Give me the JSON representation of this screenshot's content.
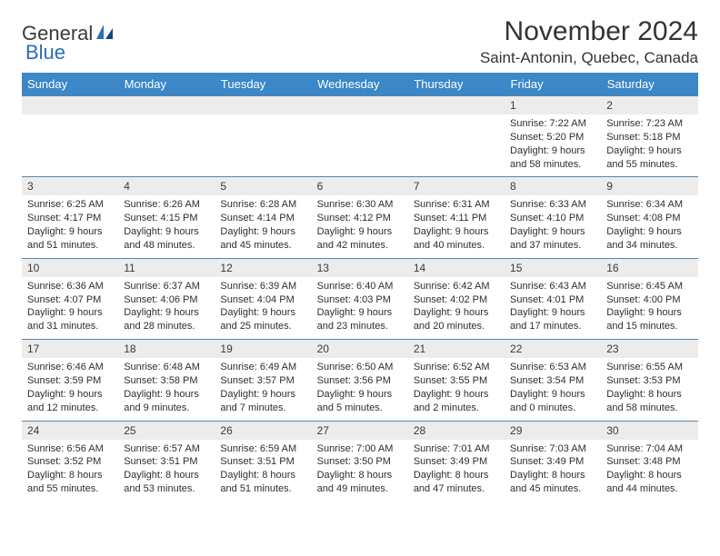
{
  "brand": {
    "part1": "General",
    "part2": "Blue"
  },
  "title": "November 2024",
  "location": "Saint-Antonin, Quebec, Canada",
  "days_of_week": [
    "Sunday",
    "Monday",
    "Tuesday",
    "Wednesday",
    "Thursday",
    "Friday",
    "Saturday"
  ],
  "colors": {
    "header_bg": "#3b87c8",
    "header_text": "#ffffff",
    "daynum_bg": "#ececec",
    "row_border": "#5a84a8",
    "body_text": "#2e2e2e",
    "title_text": "#333333",
    "logo_gray": "#3a3a3a",
    "logo_blue": "#2a6db8"
  },
  "typography": {
    "month_title_size": 30,
    "location_size": 17,
    "dow_size": 13,
    "daynum_size": 12,
    "cell_size": 11
  },
  "weeks": [
    {
      "nums": [
        "",
        "",
        "",
        "",
        "",
        "1",
        "2"
      ],
      "cells": [
        null,
        null,
        null,
        null,
        null,
        {
          "sunrise": "Sunrise: 7:22 AM",
          "sunset": "Sunset: 5:20 PM",
          "dl1": "Daylight: 9 hours",
          "dl2": "and 58 minutes."
        },
        {
          "sunrise": "Sunrise: 7:23 AM",
          "sunset": "Sunset: 5:18 PM",
          "dl1": "Daylight: 9 hours",
          "dl2": "and 55 minutes."
        }
      ]
    },
    {
      "nums": [
        "3",
        "4",
        "5",
        "6",
        "7",
        "8",
        "9"
      ],
      "cells": [
        {
          "sunrise": "Sunrise: 6:25 AM",
          "sunset": "Sunset: 4:17 PM",
          "dl1": "Daylight: 9 hours",
          "dl2": "and 51 minutes."
        },
        {
          "sunrise": "Sunrise: 6:26 AM",
          "sunset": "Sunset: 4:15 PM",
          "dl1": "Daylight: 9 hours",
          "dl2": "and 48 minutes."
        },
        {
          "sunrise": "Sunrise: 6:28 AM",
          "sunset": "Sunset: 4:14 PM",
          "dl1": "Daylight: 9 hours",
          "dl2": "and 45 minutes."
        },
        {
          "sunrise": "Sunrise: 6:30 AM",
          "sunset": "Sunset: 4:12 PM",
          "dl1": "Daylight: 9 hours",
          "dl2": "and 42 minutes."
        },
        {
          "sunrise": "Sunrise: 6:31 AM",
          "sunset": "Sunset: 4:11 PM",
          "dl1": "Daylight: 9 hours",
          "dl2": "and 40 minutes."
        },
        {
          "sunrise": "Sunrise: 6:33 AM",
          "sunset": "Sunset: 4:10 PM",
          "dl1": "Daylight: 9 hours",
          "dl2": "and 37 minutes."
        },
        {
          "sunrise": "Sunrise: 6:34 AM",
          "sunset": "Sunset: 4:08 PM",
          "dl1": "Daylight: 9 hours",
          "dl2": "and 34 minutes."
        }
      ]
    },
    {
      "nums": [
        "10",
        "11",
        "12",
        "13",
        "14",
        "15",
        "16"
      ],
      "cells": [
        {
          "sunrise": "Sunrise: 6:36 AM",
          "sunset": "Sunset: 4:07 PM",
          "dl1": "Daylight: 9 hours",
          "dl2": "and 31 minutes."
        },
        {
          "sunrise": "Sunrise: 6:37 AM",
          "sunset": "Sunset: 4:06 PM",
          "dl1": "Daylight: 9 hours",
          "dl2": "and 28 minutes."
        },
        {
          "sunrise": "Sunrise: 6:39 AM",
          "sunset": "Sunset: 4:04 PM",
          "dl1": "Daylight: 9 hours",
          "dl2": "and 25 minutes."
        },
        {
          "sunrise": "Sunrise: 6:40 AM",
          "sunset": "Sunset: 4:03 PM",
          "dl1": "Daylight: 9 hours",
          "dl2": "and 23 minutes."
        },
        {
          "sunrise": "Sunrise: 6:42 AM",
          "sunset": "Sunset: 4:02 PM",
          "dl1": "Daylight: 9 hours",
          "dl2": "and 20 minutes."
        },
        {
          "sunrise": "Sunrise: 6:43 AM",
          "sunset": "Sunset: 4:01 PM",
          "dl1": "Daylight: 9 hours",
          "dl2": "and 17 minutes."
        },
        {
          "sunrise": "Sunrise: 6:45 AM",
          "sunset": "Sunset: 4:00 PM",
          "dl1": "Daylight: 9 hours",
          "dl2": "and 15 minutes."
        }
      ]
    },
    {
      "nums": [
        "17",
        "18",
        "19",
        "20",
        "21",
        "22",
        "23"
      ],
      "cells": [
        {
          "sunrise": "Sunrise: 6:46 AM",
          "sunset": "Sunset: 3:59 PM",
          "dl1": "Daylight: 9 hours",
          "dl2": "and 12 minutes."
        },
        {
          "sunrise": "Sunrise: 6:48 AM",
          "sunset": "Sunset: 3:58 PM",
          "dl1": "Daylight: 9 hours",
          "dl2": "and 9 minutes."
        },
        {
          "sunrise": "Sunrise: 6:49 AM",
          "sunset": "Sunset: 3:57 PM",
          "dl1": "Daylight: 9 hours",
          "dl2": "and 7 minutes."
        },
        {
          "sunrise": "Sunrise: 6:50 AM",
          "sunset": "Sunset: 3:56 PM",
          "dl1": "Daylight: 9 hours",
          "dl2": "and 5 minutes."
        },
        {
          "sunrise": "Sunrise: 6:52 AM",
          "sunset": "Sunset: 3:55 PM",
          "dl1": "Daylight: 9 hours",
          "dl2": "and 2 minutes."
        },
        {
          "sunrise": "Sunrise: 6:53 AM",
          "sunset": "Sunset: 3:54 PM",
          "dl1": "Daylight: 9 hours",
          "dl2": "and 0 minutes."
        },
        {
          "sunrise": "Sunrise: 6:55 AM",
          "sunset": "Sunset: 3:53 PM",
          "dl1": "Daylight: 8 hours",
          "dl2": "and 58 minutes."
        }
      ]
    },
    {
      "nums": [
        "24",
        "25",
        "26",
        "27",
        "28",
        "29",
        "30"
      ],
      "cells": [
        {
          "sunrise": "Sunrise: 6:56 AM",
          "sunset": "Sunset: 3:52 PM",
          "dl1": "Daylight: 8 hours",
          "dl2": "and 55 minutes."
        },
        {
          "sunrise": "Sunrise: 6:57 AM",
          "sunset": "Sunset: 3:51 PM",
          "dl1": "Daylight: 8 hours",
          "dl2": "and 53 minutes."
        },
        {
          "sunrise": "Sunrise: 6:59 AM",
          "sunset": "Sunset: 3:51 PM",
          "dl1": "Daylight: 8 hours",
          "dl2": "and 51 minutes."
        },
        {
          "sunrise": "Sunrise: 7:00 AM",
          "sunset": "Sunset: 3:50 PM",
          "dl1": "Daylight: 8 hours",
          "dl2": "and 49 minutes."
        },
        {
          "sunrise": "Sunrise: 7:01 AM",
          "sunset": "Sunset: 3:49 PM",
          "dl1": "Daylight: 8 hours",
          "dl2": "and 47 minutes."
        },
        {
          "sunrise": "Sunrise: 7:03 AM",
          "sunset": "Sunset: 3:49 PM",
          "dl1": "Daylight: 8 hours",
          "dl2": "and 45 minutes."
        },
        {
          "sunrise": "Sunrise: 7:04 AM",
          "sunset": "Sunset: 3:48 PM",
          "dl1": "Daylight: 8 hours",
          "dl2": "and 44 minutes."
        }
      ]
    }
  ]
}
